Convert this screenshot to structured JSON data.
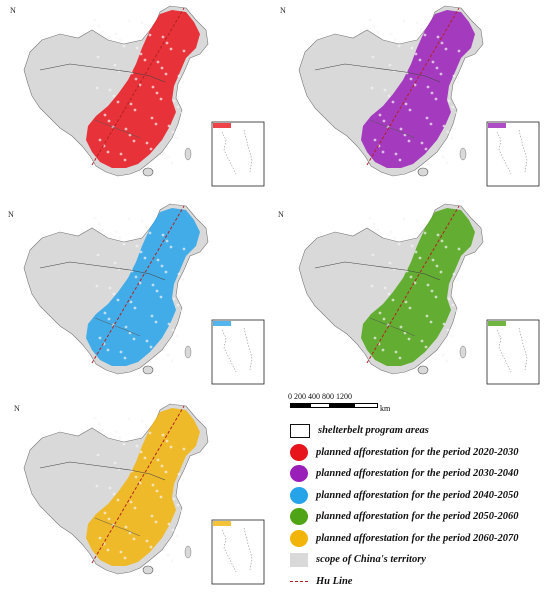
{
  "north_label": "N",
  "panels": [
    {
      "id": "2020-2030",
      "color": "#e8141b"
    },
    {
      "id": "2030-2040",
      "color": "#9a1fb8"
    },
    {
      "id": "2040-2050",
      "color": "#27a3ea"
    },
    {
      "id": "2050-2060",
      "color": "#4ea414"
    },
    {
      "id": "2060-2070",
      "color": "#f2b409"
    }
  ],
  "scalebar": {
    "ticks": "0  200 400       800       1200",
    "unit": "km"
  },
  "legend": [
    {
      "label": "shelterbelt program areas",
      "kind": "box"
    },
    {
      "label": "planned afforestation for the period 2020-2030",
      "kind": "dot",
      "color": "#e8141b"
    },
    {
      "label": "planned afforestation for the period 2030-2040",
      "kind": "dot",
      "color": "#9a1fb8"
    },
    {
      "label": "planned afforestation for the period 2040-2050",
      "kind": "dot",
      "color": "#27a3ea"
    },
    {
      "label": "planned afforestation for the period 2050-2060",
      "kind": "dot",
      "color": "#4ea414"
    },
    {
      "label": "planned afforestation for the period 2060-2070",
      "kind": "dot",
      "color": "#f2b409"
    },
    {
      "label": "scope of China's territory",
      "kind": "grey"
    },
    {
      "label": "Hu Line",
      "kind": "line",
      "color": "#b22222"
    }
  ]
}
